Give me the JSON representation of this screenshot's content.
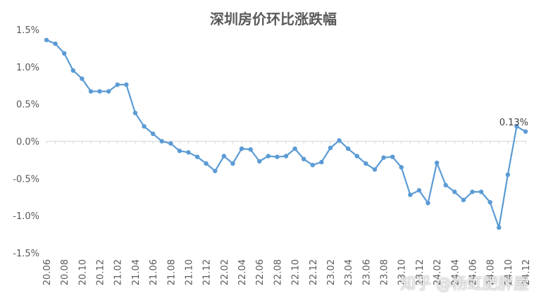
{
  "chart_data": {
    "type": "line",
    "title": "深圳房价环比涨跌幅",
    "xlabel": "",
    "ylabel": "",
    "ylim": [
      -1.5,
      1.5
    ],
    "yticks": [
      "1.5%",
      "1.0%",
      "0.5%",
      "0.0%",
      "-0.5%",
      "-1.0%",
      "-1.5%"
    ],
    "ytick_values": [
      1.5,
      1.0,
      0.5,
      0.0,
      -0.5,
      -1.0,
      -1.5
    ],
    "x": [
      "20.06",
      "20.07",
      "20.08",
      "20.09",
      "20.10",
      "20.11",
      "20.12",
      "21.01",
      "21.02",
      "21.03",
      "21.04",
      "21.05",
      "21.06",
      "21.07",
      "21.08",
      "21.09",
      "21.10",
      "21.11",
      "21.12",
      "22.01",
      "22.02",
      "22.03",
      "22.04",
      "22.05",
      "22.06",
      "22.07",
      "22.08",
      "22.09",
      "22.10",
      "22.11",
      "22.12",
      "23.01",
      "23.02",
      "23.03",
      "23.04",
      "23.05",
      "23.06",
      "23.07",
      "23.08",
      "23.09",
      "23.10",
      "23.11",
      "23.12",
      "24.01",
      "24.02",
      "24.03",
      "24.04",
      "24.05",
      "24.06",
      "24.07",
      "24.08",
      "24.09",
      "24.10",
      "24.11",
      "24.12"
    ],
    "xtick_labels": [
      "20.06",
      "20.08",
      "20.10",
      "20.12",
      "21.02",
      "21.04",
      "21.06",
      "21.08",
      "21.10",
      "21.12",
      "22.02",
      "22.04",
      "22.06",
      "22.08",
      "22.10",
      "22.12",
      "23.02",
      "23.04",
      "23.06",
      "23.08",
      "23.10",
      "23.12",
      "24.02",
      "24.04",
      "24.06",
      "24.08",
      "24.10",
      "24.12"
    ],
    "series": [
      {
        "values": [
          1.36,
          1.31,
          1.18,
          0.95,
          0.84,
          0.67,
          0.67,
          0.67,
          0.76,
          0.76,
          0.38,
          0.2,
          0.1,
          0.0,
          -0.03,
          -0.13,
          -0.15,
          -0.21,
          -0.3,
          -0.4,
          -0.2,
          -0.3,
          -0.1,
          -0.11,
          -0.27,
          -0.2,
          -0.21,
          -0.2,
          -0.1,
          -0.24,
          -0.32,
          -0.28,
          -0.09,
          0.01,
          -0.1,
          -0.2,
          -0.3,
          -0.38,
          -0.22,
          -0.21,
          -0.35,
          -0.72,
          -0.66,
          -0.83,
          -0.29,
          -0.59,
          -0.68,
          -0.79,
          -0.68,
          -0.68,
          -0.82,
          -1.16,
          -0.45,
          0.2,
          0.13
        ],
        "color": "#5B9BD5"
      }
    ],
    "annotation": {
      "text": "0.13%",
      "at_index": 54
    },
    "grid": false,
    "legend": "none",
    "watermark": "知乎 @杨虹肥胖屋"
  }
}
